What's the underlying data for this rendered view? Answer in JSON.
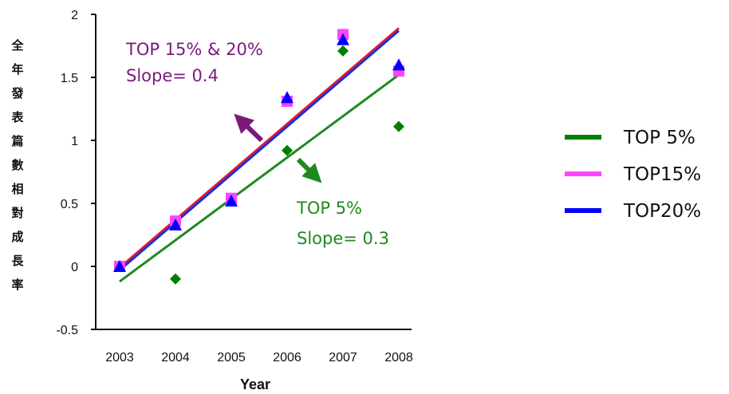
{
  "chart_data": {
    "type": "scatter",
    "xlabel": "Year",
    "ylabel": "全年發表篇數相對成長率",
    "xlim": [
      2003,
      2008
    ],
    "ylim": [
      -0.5,
      2
    ],
    "x_ticks": [
      "2003",
      "2004",
      "2005",
      "2006",
      "2007",
      "2008"
    ],
    "y_ticks": [
      "2",
      "1.5",
      "1",
      "0.5",
      "0",
      "-0.5"
    ],
    "grid": false,
    "legend_position": "right",
    "series": [
      {
        "name": "TOP 5%",
        "color": "#008000",
        "marker": "diamond",
        "x": [
          2003,
          2004,
          2005,
          2006,
          2007,
          2008
        ],
        "y": [
          0,
          -0.1,
          0.52,
          0.92,
          1.71,
          1.11
        ],
        "trend": {
          "x": [
            2003,
            2008
          ],
          "y": [
            -0.12,
            1.52
          ]
        }
      },
      {
        "name": "TOP15%",
        "color": "#ff44ff",
        "marker": "square",
        "x": [
          2003,
          2004,
          2005,
          2006,
          2007,
          2008
        ],
        "y": [
          0,
          0.36,
          0.54,
          1.31,
          1.84,
          1.55
        ],
        "trend": {
          "x": [
            2003,
            2008
          ],
          "y": [
            -0.01,
            1.89
          ]
        }
      },
      {
        "name": "TOP20%",
        "color": "#0000ff",
        "marker": "triangle",
        "x": [
          2003,
          2004,
          2005,
          2006,
          2007,
          2008
        ],
        "y": [
          0,
          0.33,
          0.52,
          1.34,
          1.8,
          1.6
        ],
        "trend": {
          "x": [
            2003,
            2008
          ],
          "y": [
            -0.03,
            1.87
          ]
        }
      }
    ],
    "annotations": [
      {
        "lines": [
          "TOP 15% & 20%",
          "Slope= 0.4"
        ],
        "color": "#7a1a7a"
      },
      {
        "lines": [
          "TOP 5%",
          "Slope= 0.3"
        ],
        "color": "#1e8a1e"
      }
    ],
    "trend_line_colors": [
      "#1e8a1e",
      "#e81c2b",
      "#1f2fd8"
    ]
  }
}
